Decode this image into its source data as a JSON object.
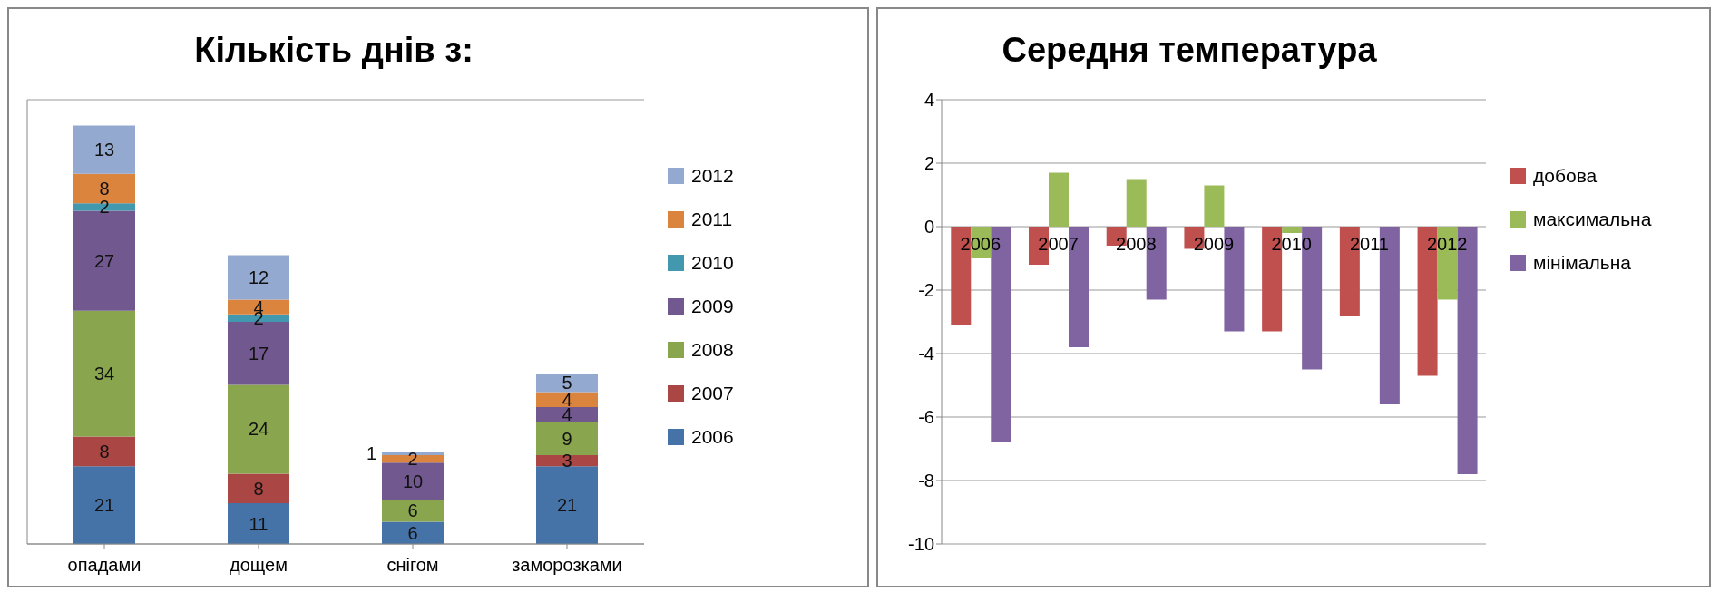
{
  "chart_data": [
    {
      "type": "bar",
      "title": "Кількість днів з:",
      "categories": [
        "опадами",
        "дощем",
        "снігом",
        "заморозками"
      ],
      "stacked": true,
      "tick_labels": "x",
      "grid": "y",
      "legend": "right",
      "series": [
        {
          "name": "2006",
          "color": "#4572a7",
          "values": [
            21,
            11,
            6,
            21
          ],
          "value_labels": [
            "21",
            "11",
            "6",
            "21"
          ]
        },
        {
          "name": "2007",
          "color": "#aa4643",
          "values": [
            8,
            8,
            0,
            3
          ],
          "value_labels": [
            "8",
            "8",
            null,
            "3"
          ]
        },
        {
          "name": "2008",
          "color": "#89a54e",
          "values": [
            34,
            24,
            6,
            9
          ],
          "value_labels": [
            "34",
            "24",
            "6",
            "9"
          ]
        },
        {
          "name": "2009",
          "color": "#71588f",
          "values": [
            27,
            17,
            10,
            4
          ],
          "value_labels": [
            "27",
            "17",
            "10",
            "4"
          ]
        },
        {
          "name": "2010",
          "color": "#4198af",
          "values": [
            2,
            2,
            0,
            0
          ],
          "value_labels": [
            "2",
            "2",
            null,
            null
          ]
        },
        {
          "name": "2011",
          "color": "#db843d",
          "values": [
            8,
            4,
            2,
            4
          ],
          "value_labels": [
            "8",
            "4",
            "2",
            "4"
          ]
        },
        {
          "name": "2012",
          "color": "#93a9cf",
          "values": [
            13,
            12,
            1,
            5
          ],
          "value_labels": [
            "13",
            "12",
            "1",
            "5"
          ]
        }
      ]
    },
    {
      "type": "bar",
      "title": "Середня температура",
      "categories": [
        "2006",
        "2007",
        "2008",
        "2009",
        "2010",
        "2011",
        "2012"
      ],
      "ylim": [
        -10,
        4
      ],
      "yticks": [
        -10,
        -8,
        -6,
        -4,
        -2,
        0,
        2,
        4
      ],
      "grid": "y",
      "legend": "right",
      "series": [
        {
          "name": "добова",
          "color": "#c0504d",
          "values": [
            -3.1,
            -1.2,
            -0.6,
            -0.7,
            -3.3,
            -2.8,
            -4.7
          ]
        },
        {
          "name": "максимальна",
          "color": "#9bbb59",
          "values": [
            -1.0,
            1.7,
            1.5,
            1.3,
            -0.2,
            0,
            -2.3
          ]
        },
        {
          "name": "мінімальна",
          "color": "#8064a2",
          "values": [
            -6.8,
            -3.8,
            -2.3,
            -3.3,
            -4.5,
            -5.6,
            -7.8
          ]
        }
      ]
    }
  ]
}
